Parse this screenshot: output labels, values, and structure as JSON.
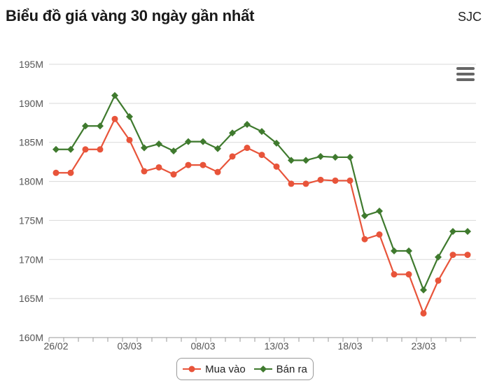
{
  "header": {
    "title": "Biểu đồ giá vàng 30 ngày gần nhất",
    "brand": "SJC"
  },
  "colors": {
    "buy": "#e8543a",
    "sell": "#3f7a2e",
    "grid": "#d9d9d9",
    "axis": "#555555"
  },
  "icons": {
    "menu": "hamburger-menu-icon"
  },
  "chart_data": {
    "type": "line",
    "title": "Biểu đồ giá vàng 30 ngày gần nhất",
    "xlabel": "",
    "ylabel": "",
    "ylim": [
      160,
      195
    ],
    "y_ticks": [
      160,
      165,
      170,
      175,
      180,
      185,
      190,
      195
    ],
    "y_tick_suffix": "M",
    "x_tick_labels": [
      "26/02",
      "03/03",
      "08/03",
      "13/03",
      "18/03",
      "23/03"
    ],
    "x_tick_positions": [
      0,
      5,
      10,
      15,
      20,
      25
    ],
    "grid": true,
    "legend_position": "bottom-center",
    "series": [
      {
        "name": "Mua vào",
        "marker": "circle",
        "values": [
          181.1,
          181.1,
          184.1,
          184.1,
          188.0,
          185.3,
          181.3,
          181.8,
          180.9,
          182.1,
          182.1,
          181.2,
          183.2,
          184.3,
          183.4,
          181.9,
          179.7,
          179.7,
          180.2,
          180.1,
          180.1,
          172.6,
          173.2,
          168.1,
          168.1,
          163.1,
          167.3,
          170.6,
          170.6
        ]
      },
      {
        "name": "Bán ra",
        "marker": "diamond",
        "values": [
          184.1,
          184.1,
          187.1,
          187.1,
          191.0,
          188.3,
          184.3,
          184.8,
          183.9,
          185.1,
          185.1,
          184.2,
          186.2,
          187.3,
          186.4,
          184.9,
          182.7,
          182.7,
          183.2,
          183.1,
          183.1,
          175.6,
          176.2,
          171.1,
          171.1,
          166.1,
          170.3,
          173.6,
          173.6
        ]
      }
    ]
  }
}
